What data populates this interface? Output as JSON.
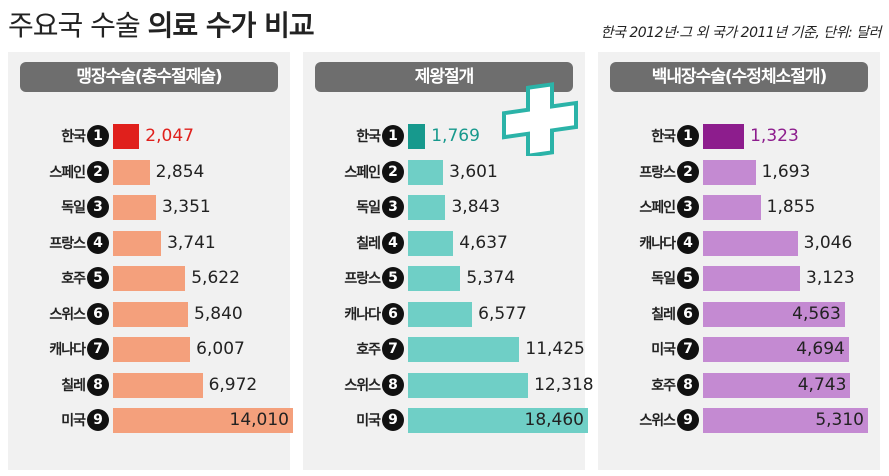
{
  "title_part1": "주요국 수술",
  "title_part2": "의료 수가 비교",
  "subtitle": "한국 2012년·그 외 국가 2011년 기준, 단위: 달러",
  "chart_data": [
    {
      "type": "bar",
      "title": "맹장수술(충수절제술)",
      "unit": "달러",
      "color": "#f4a07c",
      "highlight_color": "#e0201c",
      "max": 14010,
      "categories": [
        "한국",
        "스페인",
        "독일",
        "프랑스",
        "호주",
        "스위스",
        "캐나다",
        "칠레",
        "미국"
      ],
      "values": [
        2047,
        2854,
        3351,
        3741,
        5622,
        5840,
        6007,
        6972,
        14010
      ]
    },
    {
      "type": "bar",
      "title": "제왕절개",
      "unit": "달러",
      "color": "#6fcfc6",
      "highlight_color": "#17998d",
      "max": 18460,
      "categories": [
        "한국",
        "스페인",
        "독일",
        "칠레",
        "프랑스",
        "캐나다",
        "호주",
        "스위스",
        "미국"
      ],
      "values": [
        1769,
        3601,
        3843,
        4637,
        5374,
        6577,
        11425,
        12318,
        18460
      ]
    },
    {
      "type": "bar",
      "title": "백내장수술(수정체소절개)",
      "unit": "달러",
      "color": "#c48ad2",
      "highlight_color": "#8d1d8d",
      "max": 5310,
      "categories": [
        "한국",
        "프랑스",
        "스페인",
        "캐나다",
        "독일",
        "칠레",
        "미국",
        "호주",
        "스위스"
      ],
      "values": [
        1323,
        1693,
        1855,
        3046,
        3123,
        4563,
        4694,
        4743,
        5310
      ]
    }
  ]
}
